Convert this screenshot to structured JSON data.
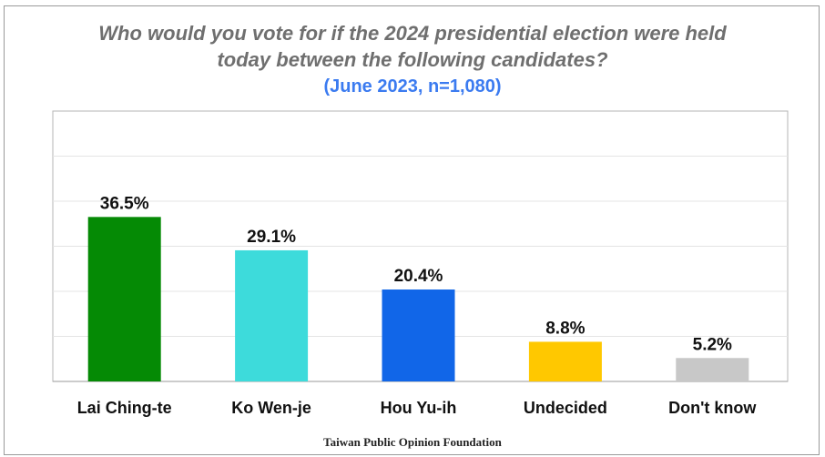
{
  "chart_data": {
    "type": "bar",
    "title": "Who would you vote for if the 2024 presidential election were held today between the following candidates?",
    "title_lines": [
      "Who would you vote for if the 2024 presidential election were held",
      "today between the following candidates?"
    ],
    "subtitle": "(June 2023, n=1,080)",
    "categories": [
      "Lai Ching-te",
      "Ko Wen-je",
      "Hou Yu-ih",
      "Undecided",
      "Don't know"
    ],
    "values": [
      36.5,
      29.1,
      20.4,
      8.8,
      5.2
    ],
    "value_labels": [
      "36.5%",
      "29.1%",
      "20.4%",
      "8.8%",
      "5.2%"
    ],
    "colors": [
      "#058a05",
      "#3ddbdb",
      "#1166e8",
      "#ffc800",
      "#c8c8c8"
    ],
    "xlabel": "",
    "ylabel": "",
    "ylim": [
      0,
      60
    ],
    "grid": true,
    "legend": "none"
  },
  "source": "Taiwan Public Opinion Foundation",
  "colors": {
    "title": "#6f6f6f",
    "subtitle": "#3b7bf0"
  }
}
